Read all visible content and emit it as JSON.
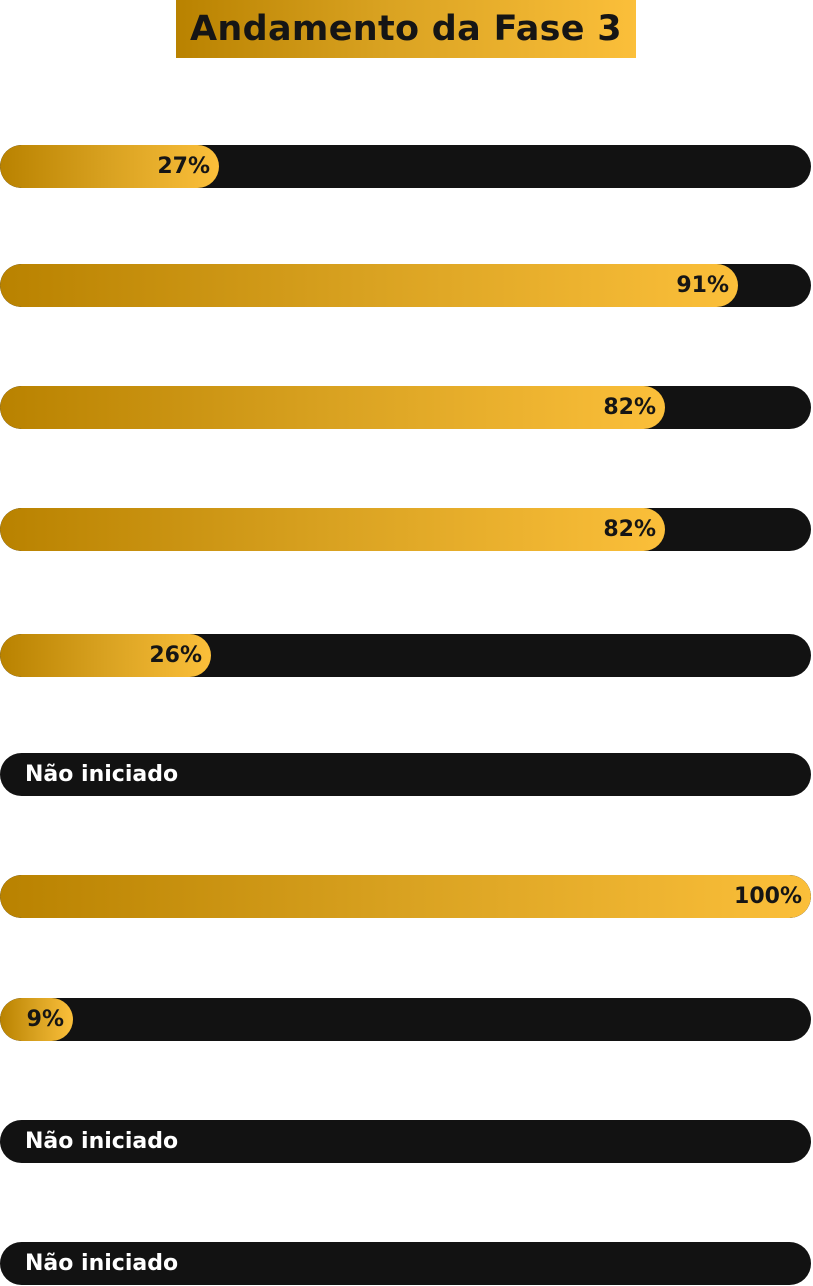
{
  "title": "Andamento da Fase 3",
  "colors": {
    "track": "#121212",
    "fill_start": "#b98200",
    "fill_end": "#fbbf3a",
    "status_text": "#ffffff",
    "pct_text": "#151515"
  },
  "bars": [
    {
      "progress": 27,
      "label": "27%"
    },
    {
      "progress": 91,
      "label": "91%"
    },
    {
      "progress": 82,
      "label": "82%"
    },
    {
      "progress": 82,
      "label": "82%"
    },
    {
      "progress": 26,
      "label": "26%"
    },
    {
      "progress": 0,
      "label": "Não iniciado"
    },
    {
      "progress": 100,
      "label": "100%"
    },
    {
      "progress": 9,
      "label": "9%"
    },
    {
      "progress": 0,
      "label": "Não iniciado"
    },
    {
      "progress": 0,
      "label": "Não iniciado"
    }
  ]
}
